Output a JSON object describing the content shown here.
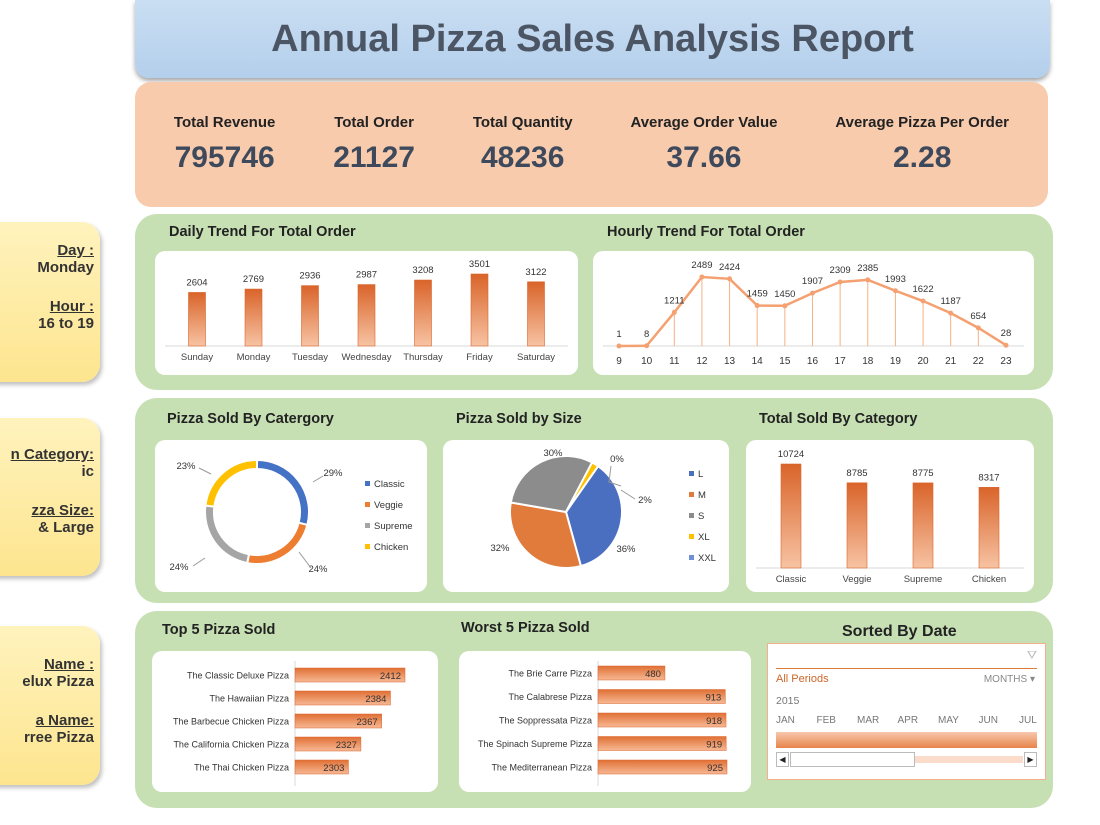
{
  "title": "Annual Pizza Sales Analysis Report",
  "kpis": [
    {
      "label": "Total Revenue",
      "value": "795746"
    },
    {
      "label": "Total Order",
      "value": "21127"
    },
    {
      "label": "Total Quantity",
      "value": "48236"
    },
    {
      "label": "Average Order Value",
      "value": "37.66"
    },
    {
      "label": "Average Pizza Per Order",
      "value": "2.28"
    }
  ],
  "cards": [
    {
      "h1": "Day :",
      "v1": "Monday",
      "h2": "Hour :",
      "v2": "16 to 19"
    },
    {
      "h1": "n Category:",
      "v1": "ic",
      "h2": "zza Size:",
      "v2": "& Large"
    },
    {
      "h1": "Name :",
      "v1": "elux Pizza",
      "h2": "a Name:",
      "v2": "rree Pizza"
    }
  ],
  "sections": {
    "daily": "Daily Trend For Total Order",
    "hourly": "Hourly Trend For Total Order",
    "category": "Pizza Sold By Catergory",
    "size": "Pizza Sold by Size",
    "total_cat": "Total Sold By Category",
    "top5": "Top 5 Pizza Sold",
    "worst5": "Worst 5 Pizza Sold",
    "timeline": "Sorted By Date"
  },
  "colors": {
    "bar": "#e8844a",
    "title_bg": "#bdd7ee",
    "kpi_bg": "#f8cbad",
    "panel_bg": "#c6e0b4",
    "card_bg": "#fde58f"
  },
  "chart_data": [
    {
      "id": "daily",
      "type": "bar",
      "categories": [
        "Sunday",
        "Monday",
        "Tuesday",
        "Wednesday",
        "Thursday",
        "Friday",
        "Saturday"
      ],
      "values": [
        2604,
        2769,
        2936,
        2987,
        3208,
        3501,
        3122
      ]
    },
    {
      "id": "hourly",
      "type": "line",
      "x": [
        9,
        10,
        11,
        12,
        13,
        14,
        15,
        16,
        17,
        18,
        19,
        20,
        21,
        22,
        23
      ],
      "values": [
        1,
        8,
        1211,
        2489,
        2424,
        1459,
        1450,
        1907,
        2309,
        2385,
        1993,
        1622,
        1187,
        654,
        28
      ]
    },
    {
      "id": "category",
      "type": "pie",
      "donut": true,
      "categories": [
        "Classic",
        "Veggie",
        "Supreme",
        "Chicken"
      ],
      "values": [
        29,
        24,
        24,
        23
      ],
      "labels": [
        "29%",
        "24%",
        "24%",
        "23%"
      ],
      "colors": [
        "#4472c4",
        "#ed7d31",
        "#a5a5a5",
        "#ffc000"
      ],
      "legend": "right"
    },
    {
      "id": "size",
      "type": "pie",
      "categories": [
        "L",
        "M",
        "S",
        "XL",
        "XXL"
      ],
      "values": [
        36,
        32,
        30,
        2,
        0
      ],
      "labels": [
        "36%",
        "32%",
        "30%",
        "2%",
        "0%"
      ],
      "colors": [
        "#4a6fc0",
        "#e07b3c",
        "#8c8c8c",
        "#ffc000",
        "#6f8fd6"
      ],
      "legend": "right"
    },
    {
      "id": "total_cat",
      "type": "bar",
      "categories": [
        "Classic",
        "Veggie",
        "Supreme",
        "Chicken"
      ],
      "values": [
        10724,
        8785,
        8775,
        8317
      ]
    },
    {
      "id": "top5",
      "type": "bar",
      "orientation": "horizontal",
      "categories": [
        "The Classic Deluxe Pizza",
        "The Hawaiian Pizza",
        "The Barbecue Chicken Pizza",
        "The California Chicken Pizza",
        "The Thai Chicken Pizza"
      ],
      "values": [
        2412,
        2384,
        2367,
        2327,
        2303
      ],
      "xlim": [
        2200,
        2412
      ]
    },
    {
      "id": "worst5",
      "type": "bar",
      "orientation": "horizontal",
      "categories": [
        "The Brie Carre Pizza",
        "The Calabrese Pizza",
        "The Soppressata Pizza",
        "The Spinach Supreme Pizza",
        "The Mediterranean Pizza"
      ],
      "values": [
        480,
        913,
        918,
        919,
        925
      ],
      "xlim": [
        0,
        925
      ]
    }
  ],
  "timeline": {
    "period": "All Periods",
    "unit": "MONTHS",
    "year": "2015",
    "months": [
      "JAN",
      "FEB",
      "MAR",
      "APR",
      "MAY",
      "JUN",
      "JUL"
    ]
  }
}
